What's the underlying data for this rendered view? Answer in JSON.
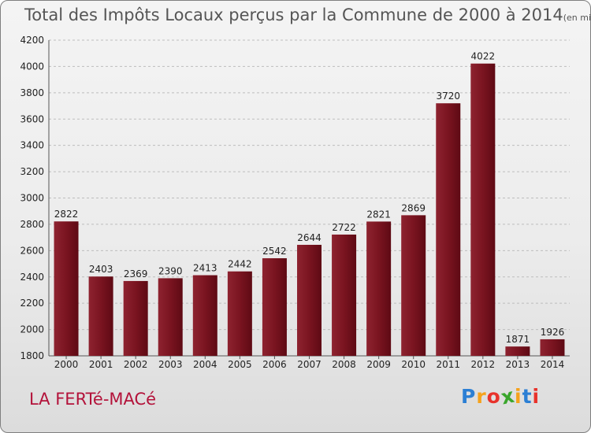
{
  "chart_data": {
    "type": "bar",
    "title": "Total des Impôts Locaux perçus par la Commune de 2000 à 2014",
    "unit": "(en milliers d'€)",
    "categories": [
      "2000",
      "2001",
      "2002",
      "2003",
      "2004",
      "2005",
      "2006",
      "2007",
      "2008",
      "2009",
      "2010",
      "2011",
      "2012",
      "2013",
      "2014"
    ],
    "values": [
      2822,
      2403,
      2369,
      2390,
      2413,
      2442,
      2542,
      2644,
      2722,
      2821,
      2869,
      3720,
      4022,
      1871,
      1926
    ],
    "ylim": [
      1800,
      4200
    ],
    "yticks": [
      1800,
      2000,
      2200,
      2400,
      2600,
      2800,
      3000,
      3200,
      3400,
      3600,
      3800,
      4000,
      4200
    ],
    "grid": true,
    "bar_color": "#7b0f1d"
  },
  "commune": "LA FERTé-MACé",
  "logo": {
    "letters": [
      "P",
      "r",
      "o",
      "x",
      "i",
      "t",
      "i"
    ],
    "colors": [
      "#2b7fd4",
      "#f5a21b",
      "#e8322b",
      "#3aa62c",
      "#f5a21b",
      "#2b7fd4",
      "#e8322b"
    ]
  }
}
